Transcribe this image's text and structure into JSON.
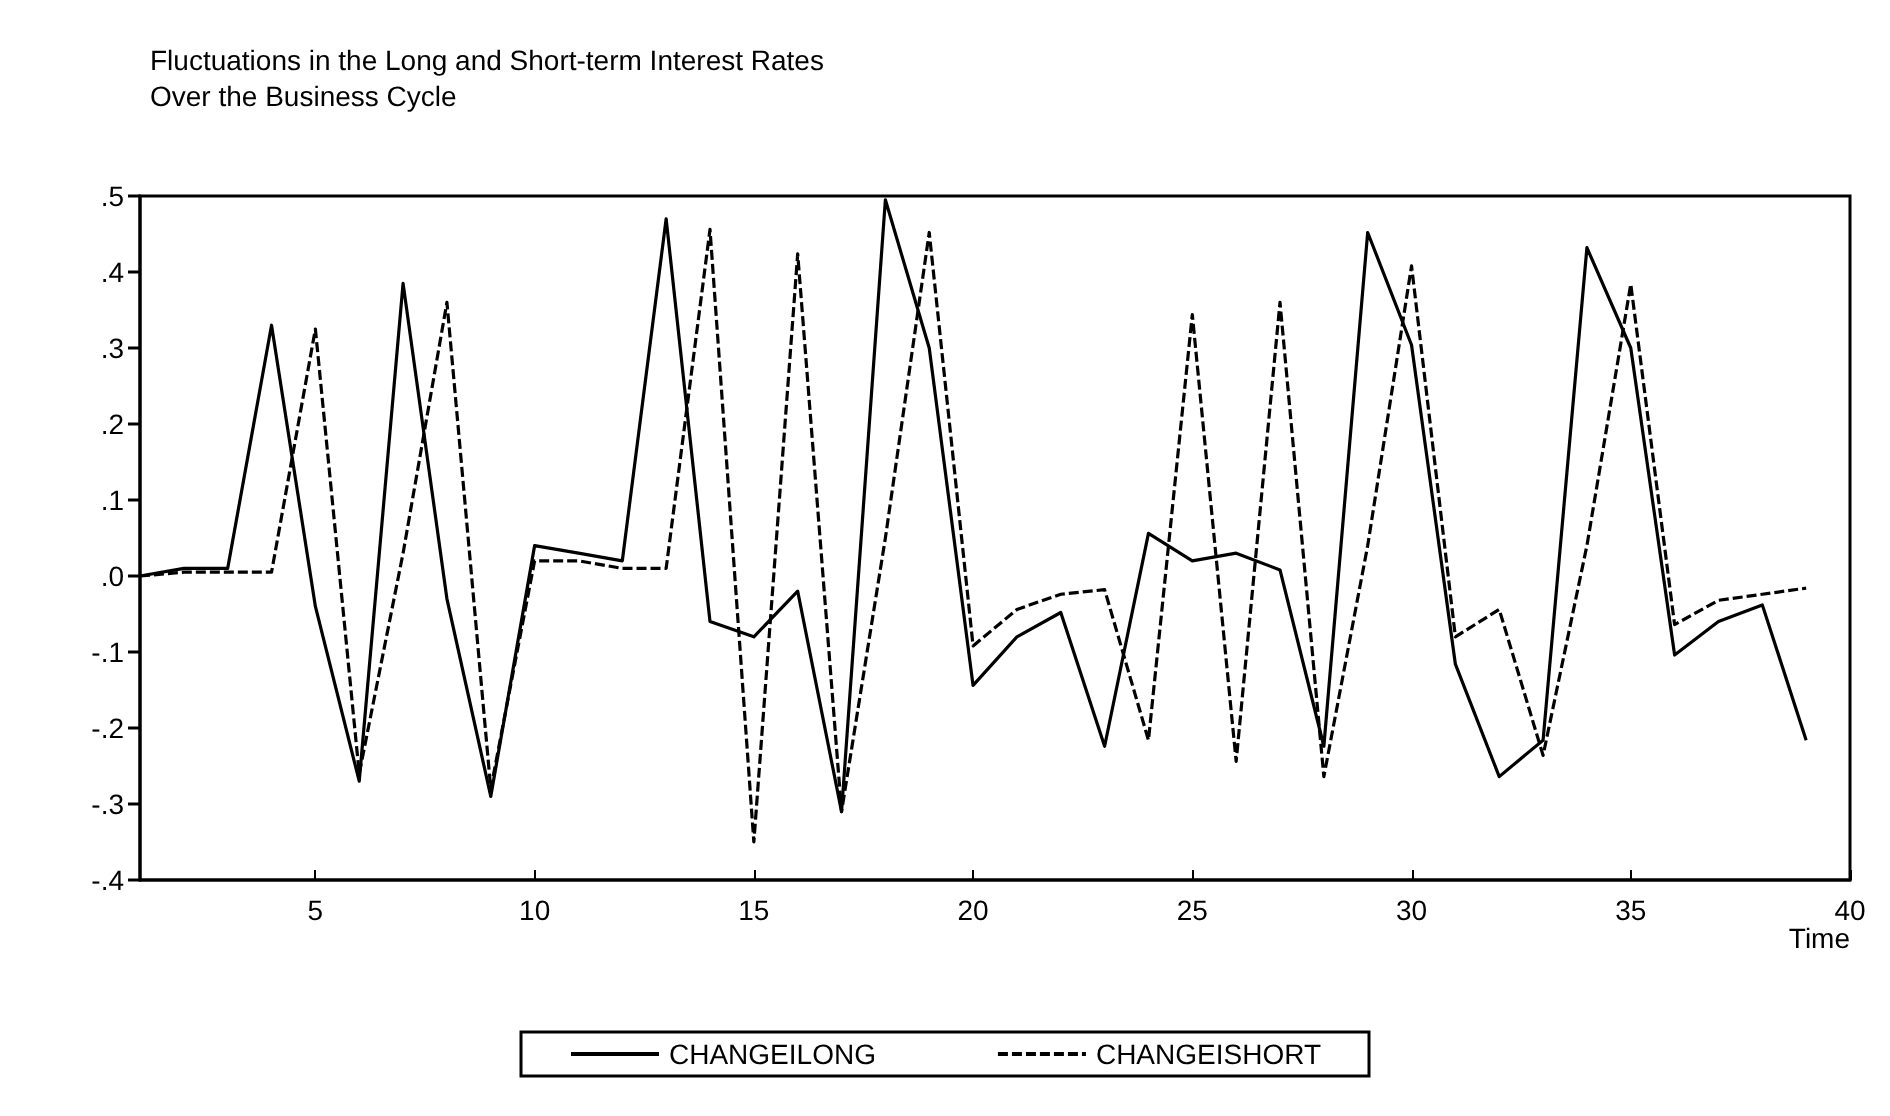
{
  "chart_data": {
    "type": "line",
    "title": "Fluctuations in the Long and Short-term Interest Rates\nOver the Business Cycle",
    "xlabel": "Time",
    "x": [
      1,
      2,
      3,
      4,
      5,
      6,
      7,
      8,
      9,
      10,
      11,
      12,
      13,
      14,
      15,
      16,
      17,
      18,
      19,
      20,
      21,
      22,
      23,
      24,
      25,
      26,
      27,
      28,
      29,
      30,
      31,
      32,
      33,
      34,
      35,
      36,
      37,
      38,
      39
    ],
    "series": [
      {
        "name": "CHANGEILONG",
        "color": "#000000",
        "line_style": "solid",
        "values": [
          0,
          0.01,
          0.01,
          0.33,
          -0.04,
          -0.27,
          0.385,
          -0.03,
          -0.29,
          0.04,
          0.03,
          0.02,
          0.47,
          -0.06,
          -0.08,
          -0.02,
          -0.31,
          0.495,
          0.3,
          -0.144,
          -0.08,
          -0.048,
          -0.224,
          0.056,
          0.02,
          0.03,
          0.008,
          -0.224,
          0.452,
          0.304,
          -0.116,
          -0.264,
          -0.216,
          0.432,
          0.3,
          -0.104,
          -0.06,
          -0.038,
          -0.216
        ]
      },
      {
        "name": "CHANGEISHORT",
        "color": "#000000",
        "line_style": "dashed",
        "values": [
          0,
          0.005,
          0.005,
          0.005,
          0.325,
          -0.26,
          0.03,
          0.36,
          -0.28,
          0.02,
          0.02,
          0.01,
          0.01,
          0.456,
          -0.35,
          0.424,
          -0.31,
          0.05,
          0.452,
          -0.092,
          -0.044,
          -0.024,
          -0.018,
          -0.216,
          0.344,
          -0.244,
          0.36,
          -0.264,
          0.04,
          0.408,
          -0.08,
          -0.044,
          -0.236,
          0.04,
          0.384,
          -0.064,
          -0.032,
          -0.024,
          -0.016
        ]
      }
    ],
    "xlim": [
      1,
      40
    ],
    "xticks": [
      5,
      10,
      15,
      20,
      25,
      30,
      35,
      40
    ],
    "ylim": [
      -0.4,
      0.5
    ],
    "yticks": [
      {
        "value": -0.4,
        "label": "-.4"
      },
      {
        "value": -0.3,
        "label": "-.3"
      },
      {
        "value": -0.2,
        "label": "-.2"
      },
      {
        "value": -0.1,
        "label": "-.1"
      },
      {
        "value": 0,
        "label": ".0"
      },
      {
        "value": 0.1,
        "label": ".1"
      },
      {
        "value": 0.2,
        "label": ".2"
      },
      {
        "value": 0.3,
        "label": ".3"
      },
      {
        "value": 0.4,
        "label": ".4"
      },
      {
        "value": 0.5,
        "label": ".5"
      }
    ],
    "grid": false,
    "legend": "bottom",
    "marker": "none"
  }
}
